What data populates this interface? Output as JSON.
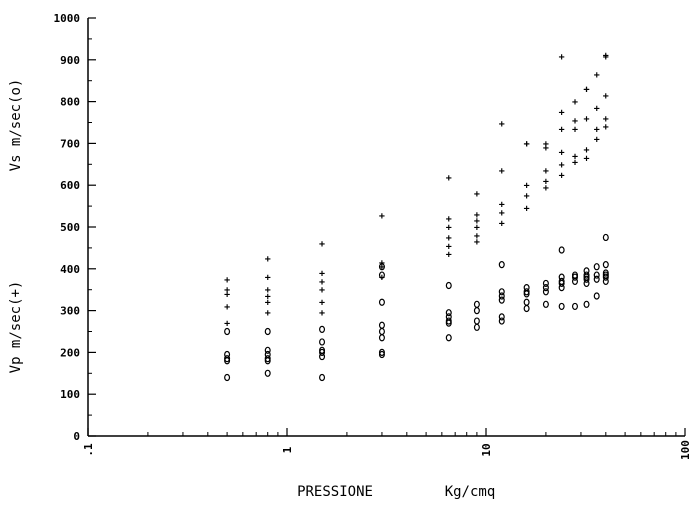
{
  "chart_data": {
    "type": "scatter",
    "xlabel": "PRESSIONE",
    "xlabel_unit": "Kg/cmq",
    "ylabel_upper": "Vs m/sec(o)",
    "ylabel_lower": "Vp m/sec(+)",
    "x_scale": "log",
    "xlim": [
      0.1,
      100
    ],
    "ylim": [
      0,
      1000
    ],
    "x_ticks": [
      {
        "value": 0.1,
        "label": ".1"
      },
      {
        "value": 1,
        "label": "1"
      },
      {
        "value": 10,
        "label": "10"
      },
      {
        "value": 100,
        "label": "100"
      }
    ],
    "y_ticks": [
      {
        "value": 0,
        "label": "0"
      },
      {
        "value": 100,
        "label": "100"
      },
      {
        "value": 200,
        "label": "200"
      },
      {
        "value": 300,
        "label": "300"
      },
      {
        "value": 400,
        "label": "400"
      },
      {
        "value": 500,
        "label": "500"
      },
      {
        "value": 600,
        "label": "600"
      },
      {
        "value": 700,
        "label": "700"
      },
      {
        "value": 800,
        "label": "800"
      },
      {
        "value": 900,
        "label": "900"
      },
      {
        "value": 1000,
        "label": "1000"
      }
    ],
    "grid": false,
    "series": [
      {
        "name": "Vp m/sec(+)",
        "marker": "+",
        "points": [
          [
            0.5,
            375
          ],
          [
            0.5,
            350
          ],
          [
            0.5,
            340
          ],
          [
            0.5,
            310
          ],
          [
            0.5,
            270
          ],
          [
            0.8,
            425
          ],
          [
            0.8,
            380
          ],
          [
            0.8,
            350
          ],
          [
            0.8,
            335
          ],
          [
            0.8,
            320
          ],
          [
            0.8,
            295
          ],
          [
            1.5,
            460
          ],
          [
            1.5,
            390
          ],
          [
            1.5,
            370
          ],
          [
            1.5,
            350
          ],
          [
            1.5,
            320
          ],
          [
            1.5,
            295
          ],
          [
            3,
            528
          ],
          [
            3,
            415
          ],
          [
            3,
            405
          ],
          [
            3,
            380
          ],
          [
            6.5,
            618
          ],
          [
            6.5,
            520
          ],
          [
            6.5,
            500
          ],
          [
            6.5,
            475
          ],
          [
            6.5,
            455
          ],
          [
            6.5,
            435
          ],
          [
            9,
            580
          ],
          [
            9,
            530
          ],
          [
            9,
            515
          ],
          [
            9,
            500
          ],
          [
            9,
            480
          ],
          [
            9,
            465
          ],
          [
            12,
            748
          ],
          [
            12,
            635
          ],
          [
            12,
            555
          ],
          [
            12,
            535
          ],
          [
            12,
            510
          ],
          [
            16,
            700
          ],
          [
            16,
            700
          ],
          [
            16,
            600
          ],
          [
            16,
            575
          ],
          [
            16,
            545
          ],
          [
            20,
            700
          ],
          [
            20,
            690
          ],
          [
            20,
            635
          ],
          [
            20,
            610
          ],
          [
            20,
            595
          ],
          [
            24,
            908
          ],
          [
            24,
            775
          ],
          [
            24,
            735
          ],
          [
            24,
            680
          ],
          [
            24,
            650
          ],
          [
            24,
            625
          ],
          [
            28,
            800
          ],
          [
            28,
            755
          ],
          [
            28,
            735
          ],
          [
            28,
            670
          ],
          [
            28,
            655
          ],
          [
            32,
            830
          ],
          [
            32,
            830
          ],
          [
            32,
            760
          ],
          [
            32,
            685
          ],
          [
            32,
            665
          ],
          [
            36,
            865
          ],
          [
            36,
            785
          ],
          [
            36,
            735
          ],
          [
            36,
            710
          ],
          [
            40,
            912
          ],
          [
            40,
            908
          ],
          [
            40,
            815
          ],
          [
            40,
            760
          ],
          [
            40,
            740
          ]
        ]
      },
      {
        "name": "Vs m/sec(o)",
        "marker": "o",
        "points": [
          [
            0.5,
            250
          ],
          [
            0.5,
            195
          ],
          [
            0.5,
            185
          ],
          [
            0.5,
            180
          ],
          [
            0.5,
            140
          ],
          [
            0.8,
            250
          ],
          [
            0.8,
            205
          ],
          [
            0.8,
            195
          ],
          [
            0.8,
            185
          ],
          [
            0.8,
            180
          ],
          [
            0.8,
            150
          ],
          [
            1.5,
            255
          ],
          [
            1.5,
            225
          ],
          [
            1.5,
            205
          ],
          [
            1.5,
            200
          ],
          [
            1.5,
            190
          ],
          [
            1.5,
            140
          ],
          [
            3,
            405
          ],
          [
            3,
            385
          ],
          [
            3,
            320
          ],
          [
            3,
            265
          ],
          [
            3,
            250
          ],
          [
            3,
            235
          ],
          [
            3,
            200
          ],
          [
            3,
            195
          ],
          [
            6.5,
            360
          ],
          [
            6.5,
            295
          ],
          [
            6.5,
            285
          ],
          [
            6.5,
            275
          ],
          [
            6.5,
            270
          ],
          [
            6.5,
            235
          ],
          [
            9,
            315
          ],
          [
            9,
            300
          ],
          [
            9,
            275
          ],
          [
            9,
            260
          ],
          [
            12,
            410
          ],
          [
            12,
            345
          ],
          [
            12,
            335
          ],
          [
            12,
            325
          ],
          [
            12,
            285
          ],
          [
            12,
            275
          ],
          [
            16,
            355
          ],
          [
            16,
            345
          ],
          [
            16,
            340
          ],
          [
            16,
            320
          ],
          [
            16,
            305
          ],
          [
            20,
            365
          ],
          [
            20,
            355
          ],
          [
            20,
            345
          ],
          [
            20,
            315
          ],
          [
            24,
            445
          ],
          [
            24,
            380
          ],
          [
            24,
            370
          ],
          [
            24,
            365
          ],
          [
            24,
            355
          ],
          [
            24,
            310
          ],
          [
            28,
            385
          ],
          [
            28,
            380
          ],
          [
            28,
            370
          ],
          [
            28,
            310
          ],
          [
            32,
            395
          ],
          [
            32,
            385
          ],
          [
            32,
            380
          ],
          [
            32,
            375
          ],
          [
            32,
            365
          ],
          [
            32,
            315
          ],
          [
            36,
            405
          ],
          [
            36,
            385
          ],
          [
            36,
            375
          ],
          [
            36,
            335
          ],
          [
            40,
            475
          ],
          [
            40,
            410
          ],
          [
            40,
            390
          ],
          [
            40,
            385
          ],
          [
            40,
            380
          ],
          [
            40,
            370
          ]
        ]
      }
    ]
  }
}
